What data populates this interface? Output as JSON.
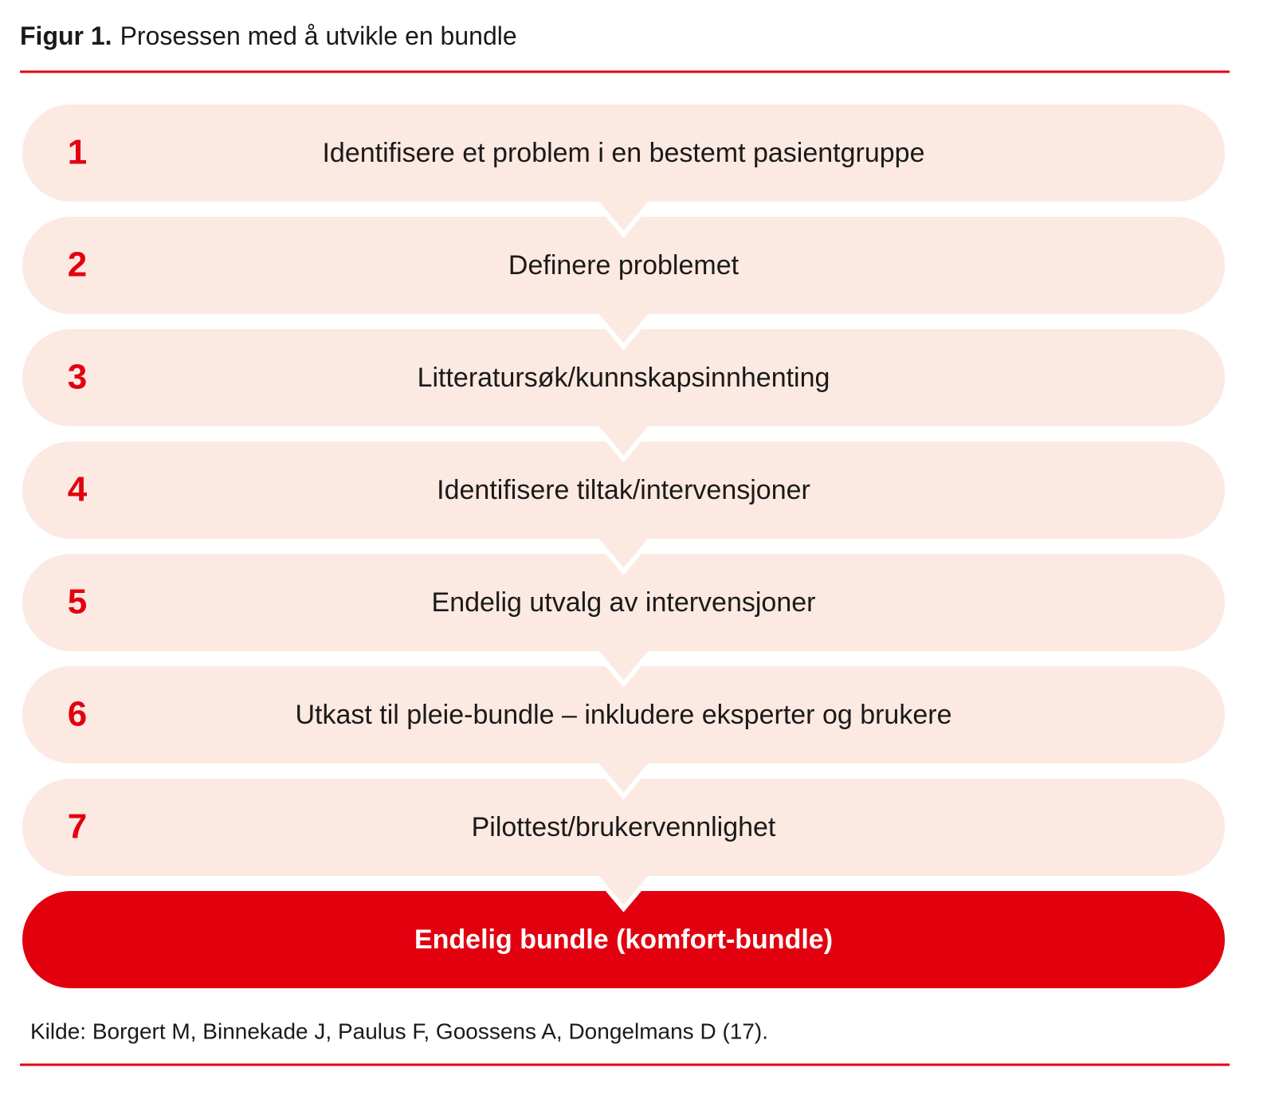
{
  "header": {
    "label": "Figur 1.",
    "title": "Prosessen med å utvikle en bundle"
  },
  "steps": [
    {
      "number": "1",
      "text": "Identifisere et problem i en bestemt pasientgruppe"
    },
    {
      "number": "2",
      "text": "Definere problemet"
    },
    {
      "number": "3",
      "text": "Litteratursøk/kunnskapsinnhenting"
    },
    {
      "number": "4",
      "text": "Identifisere tiltak/intervensjoner"
    },
    {
      "number": "5",
      "text": "Endelig utvalg av intervensjoner"
    },
    {
      "number": "6",
      "text": "Utkast til pleie-bundle – inkludere eksperter og brukere"
    },
    {
      "number": "7",
      "text": "Pilottest/brukervennlighet"
    }
  ],
  "final": "Endelig bundle (komfort-bundle)",
  "source": "Kilde: Borgert M, Binnekade J, Paulus F, Goossens A, Dongelmans D (17)."
}
